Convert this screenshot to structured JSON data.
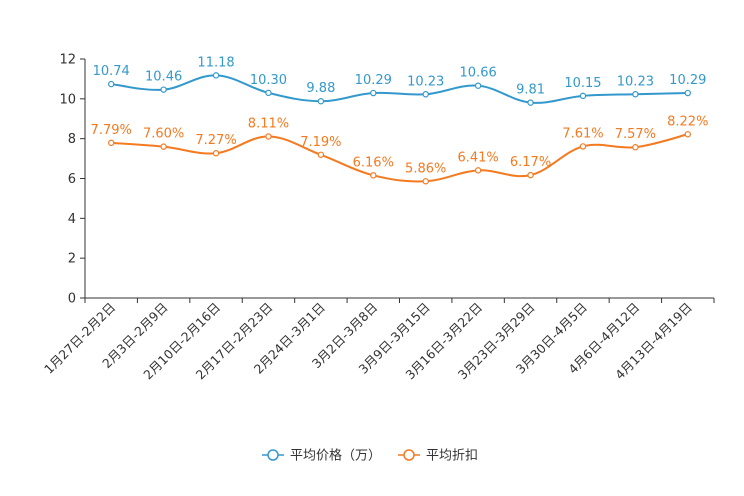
{
  "chart_data": {
    "type": "line",
    "categories": [
      "1月27日-2月2日",
      "2月3日-2月9日",
      "2月10日-2月16日",
      "2月17日-2月23日",
      "2月24日-3月1日",
      "3月2日-3月8日",
      "3月9日-3月15日",
      "3月16日-3月22日",
      "3月23日-3月29日",
      "3月30日-4月5日",
      "4月6日-4月12日",
      "4月13日-4月19日"
    ],
    "ylim": [
      0,
      12
    ],
    "yticks": [
      0,
      2,
      4,
      6,
      8,
      10,
      12
    ],
    "grid": false,
    "legend_position": "bottom-center",
    "series": [
      {
        "name": "平均价格（万）",
        "color": "#3399cc",
        "values": [
          10.74,
          10.46,
          11.18,
          10.3,
          9.88,
          10.29,
          10.23,
          10.66,
          9.81,
          10.15,
          10.23,
          10.29
        ],
        "labels": [
          "10.74",
          "10.46",
          "11.18",
          "10.30",
          "9.88",
          "10.29",
          "10.23",
          "10.66",
          "9.81",
          "10.15",
          "10.23",
          "10.29"
        ]
      },
      {
        "name": "平均折扣",
        "color": "#f47a20",
        "values": [
          7.79,
          7.6,
          7.27,
          8.11,
          7.19,
          6.16,
          5.86,
          6.41,
          6.17,
          7.61,
          7.57,
          8.22
        ],
        "labels": [
          "7.79%",
          "7.60%",
          "7.27%",
          "8.11%",
          "7.19%",
          "6.16%",
          "5.86%",
          "6.41%",
          "6.17%",
          "7.61%",
          "7.57%",
          "8.22%"
        ]
      }
    ]
  }
}
